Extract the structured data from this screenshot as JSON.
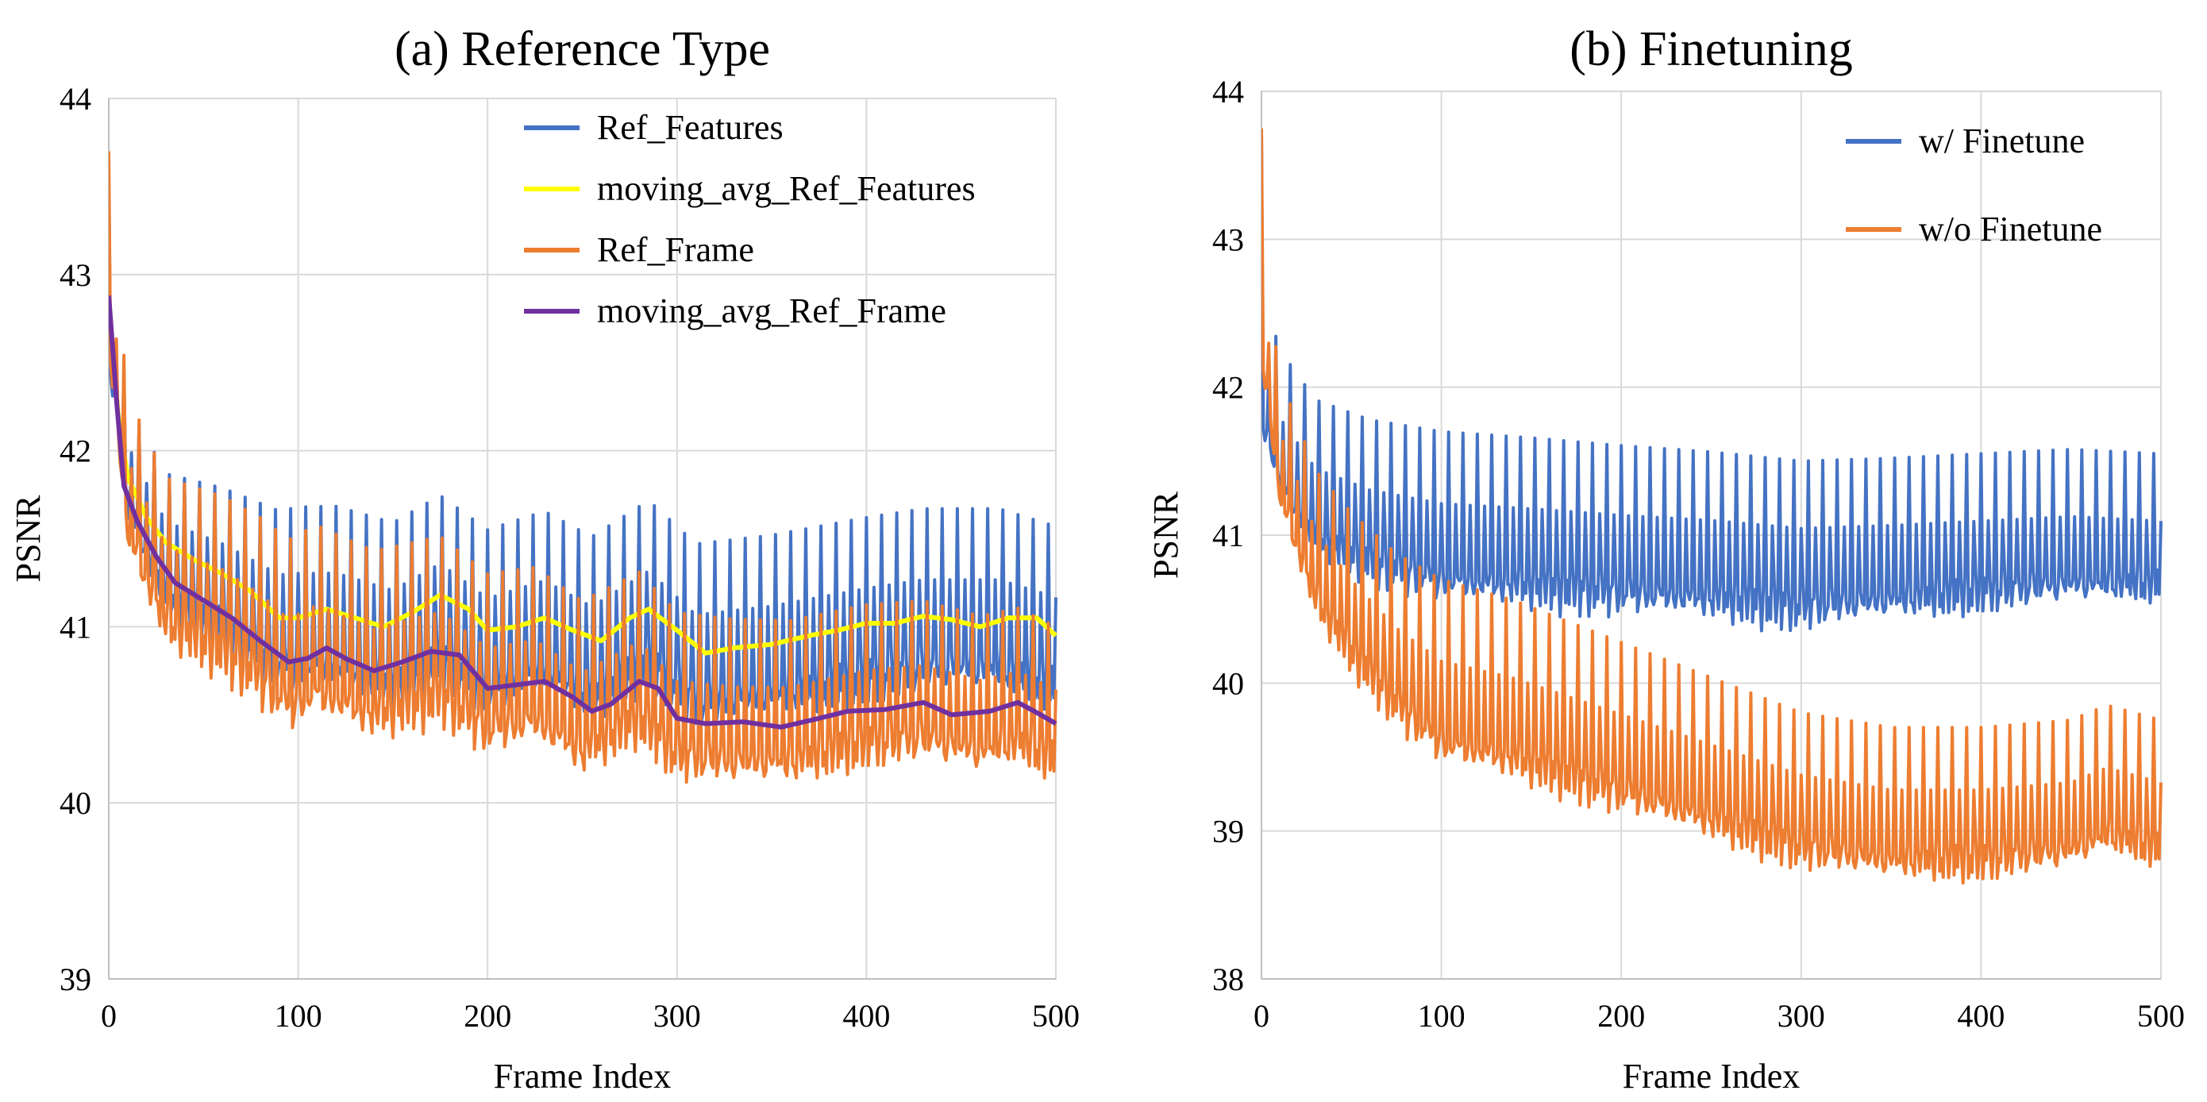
{
  "chart_data": [
    {
      "type": "line",
      "title": "(a) Reference Type",
      "xlabel": "Frame Index",
      "ylabel": "PSNR",
      "xlim": [
        0,
        500
      ],
      "ylim": [
        39,
        44
      ],
      "xticks": [
        0,
        100,
        200,
        300,
        400,
        500
      ],
      "yticks": [
        39,
        40,
        41,
        42,
        43,
        44
      ],
      "grid": true,
      "legend_position": "top-right",
      "series": [
        {
          "name": "Ref_Features",
          "color": "#4472C4",
          "style": "oscillating",
          "start": 43.6,
          "period": 8,
          "baseline": [
            [
              0,
              42.8
            ],
            [
              10,
              41.9
            ],
            [
              30,
              41.45
            ],
            [
              60,
              41.3
            ],
            [
              90,
              41.1
            ],
            [
              120,
              41.1
            ],
            [
              150,
              41.0
            ],
            [
              175,
              41.15
            ],
            [
              200,
              40.95
            ],
            [
              230,
              41.05
            ],
            [
              255,
              40.9
            ],
            [
              285,
              41.1
            ],
            [
              310,
              40.85
            ],
            [
              350,
              40.9
            ],
            [
              400,
              41.0
            ],
            [
              430,
              41.05
            ],
            [
              470,
              41.05
            ],
            [
              500,
              40.95
            ]
          ],
          "peak_amplitude": [
            [
              0,
              0.35
            ],
            [
              100,
              0.58
            ],
            [
              300,
              0.62
            ],
            [
              500,
              0.62
            ]
          ],
          "trough_amplitude": [
            [
              0,
              0.3
            ],
            [
              100,
              0.42
            ],
            [
              300,
              0.38
            ],
            [
              500,
              0.38
            ]
          ]
        },
        {
          "name": "moving_avg_Ref_Features",
          "color": "#FFFF00",
          "style": "smooth",
          "points": [
            [
              0,
              42.85
            ],
            [
              5,
              42.2
            ],
            [
              10,
              41.85
            ],
            [
              20,
              41.62
            ],
            [
              30,
              41.48
            ],
            [
              45,
              41.38
            ],
            [
              60,
              41.3
            ],
            [
              75,
              41.2
            ],
            [
              90,
              41.05
            ],
            [
              100,
              41.05
            ],
            [
              115,
              41.1
            ],
            [
              130,
              41.05
            ],
            [
              145,
              41.0
            ],
            [
              160,
              41.08
            ],
            [
              175,
              41.18
            ],
            [
              190,
              41.1
            ],
            [
              200,
              40.98
            ],
            [
              215,
              41.0
            ],
            [
              230,
              41.05
            ],
            [
              245,
              40.98
            ],
            [
              260,
              40.92
            ],
            [
              275,
              41.05
            ],
            [
              285,
              41.1
            ],
            [
              300,
              40.98
            ],
            [
              315,
              40.85
            ],
            [
              330,
              40.88
            ],
            [
              350,
              40.9
            ],
            [
              370,
              40.95
            ],
            [
              385,
              40.98
            ],
            [
              400,
              41.02
            ],
            [
              415,
              41.02
            ],
            [
              430,
              41.06
            ],
            [
              445,
              41.04
            ],
            [
              460,
              41.0
            ],
            [
              475,
              41.05
            ],
            [
              490,
              41.05
            ],
            [
              500,
              40.95
            ]
          ]
        },
        {
          "name": "Ref_Frame",
          "color": "#ED7D31",
          "style": "oscillating",
          "start": 43.7,
          "period": 8,
          "baseline": [
            [
              0,
              42.9
            ],
            [
              10,
              41.75
            ],
            [
              30,
              41.25
            ],
            [
              60,
              41.1
            ],
            [
              80,
              40.95
            ],
            [
              95,
              40.8
            ],
            [
              110,
              40.88
            ],
            [
              140,
              40.75
            ],
            [
              175,
              40.85
            ],
            [
              200,
              40.65
            ],
            [
              225,
              40.7
            ],
            [
              250,
              40.52
            ],
            [
              280,
              40.7
            ],
            [
              300,
              40.48
            ],
            [
              330,
              40.45
            ],
            [
              360,
              40.45
            ],
            [
              400,
              40.55
            ],
            [
              430,
              40.58
            ],
            [
              460,
              40.5
            ],
            [
              480,
              40.55
            ],
            [
              500,
              40.45
            ]
          ],
          "peak_amplitude": [
            [
              0,
              0.55
            ],
            [
              100,
              0.7
            ],
            [
              300,
              0.6
            ],
            [
              500,
              0.55
            ]
          ],
          "trough_amplitude": [
            [
              0,
              0.3
            ],
            [
              100,
              0.35
            ],
            [
              300,
              0.3
            ],
            [
              500,
              0.28
            ]
          ]
        },
        {
          "name": "moving_avg_Ref_Frame",
          "color": "#7030A0",
          "style": "smooth",
          "points": [
            [
              0,
              42.88
            ],
            [
              4,
              42.3
            ],
            [
              8,
              41.8
            ],
            [
              15,
              41.6
            ],
            [
              25,
              41.4
            ],
            [
              35,
              41.25
            ],
            [
              50,
              41.15
            ],
            [
              65,
              41.05
            ],
            [
              80,
              40.92
            ],
            [
              95,
              40.8
            ],
            [
              105,
              40.82
            ],
            [
              115,
              40.88
            ],
            [
              125,
              40.82
            ],
            [
              140,
              40.75
            ],
            [
              155,
              40.8
            ],
            [
              170,
              40.86
            ],
            [
              185,
              40.84
            ],
            [
              200,
              40.65
            ],
            [
              215,
              40.67
            ],
            [
              230,
              40.69
            ],
            [
              245,
              40.6
            ],
            [
              255,
              40.52
            ],
            [
              265,
              40.56
            ],
            [
              280,
              40.69
            ],
            [
              290,
              40.65
            ],
            [
              300,
              40.48
            ],
            [
              315,
              40.45
            ],
            [
              335,
              40.46
            ],
            [
              355,
              40.43
            ],
            [
              375,
              40.48
            ],
            [
              390,
              40.52
            ],
            [
              410,
              40.53
            ],
            [
              430,
              40.57
            ],
            [
              445,
              40.5
            ],
            [
              465,
              40.52
            ],
            [
              480,
              40.57
            ],
            [
              492,
              40.5
            ],
            [
              500,
              40.45
            ]
          ]
        }
      ]
    },
    {
      "type": "line",
      "title": "(b) Finetuning",
      "xlabel": "Frame Index",
      "ylabel": "PSNR",
      "xlim": [
        0,
        500
      ],
      "ylim": [
        38,
        44
      ],
      "xticks": [
        0,
        100,
        200,
        300,
        400,
        500
      ],
      "yticks": [
        38,
        39,
        40,
        41,
        42,
        43,
        44
      ],
      "grid": true,
      "legend_position": "top-right",
      "series": [
        {
          "name": "w/ Finetune",
          "color": "#4472C4",
          "style": "oscillating",
          "start": 43.7,
          "period": 8,
          "baseline": [
            [
              0,
              42.0
            ],
            [
              10,
              41.55
            ],
            [
              30,
              41.2
            ],
            [
              60,
              41.05
            ],
            [
              100,
              40.95
            ],
            [
              150,
              40.92
            ],
            [
              200,
              40.88
            ],
            [
              250,
              40.85
            ],
            [
              300,
              40.8
            ],
            [
              350,
              40.82
            ],
            [
              400,
              40.85
            ],
            [
              450,
              40.88
            ],
            [
              500,
              40.85
            ]
          ],
          "peak_amplitude": [
            [
              0,
              0.7
            ],
            [
              100,
              0.75
            ],
            [
              300,
              0.7
            ],
            [
              500,
              0.7
            ]
          ],
          "trough_amplitude": [
            [
              0,
              0.25
            ],
            [
              100,
              0.35
            ],
            [
              300,
              0.38
            ],
            [
              500,
              0.25
            ]
          ]
        },
        {
          "name": "w/o Finetune",
          "color": "#ED7D31",
          "style": "oscillating",
          "start": 43.75,
          "period": 8,
          "baseline": [
            [
              0,
              42.5
            ],
            [
              10,
              41.5
            ],
            [
              30,
              40.8
            ],
            [
              50,
              40.45
            ],
            [
              75,
              40.1
            ],
            [
              100,
              39.85
            ],
            [
              140,
              39.75
            ],
            [
              180,
              39.6
            ],
            [
              220,
              39.45
            ],
            [
              260,
              39.3
            ],
            [
              300,
              39.15
            ],
            [
              350,
              39.05
            ],
            [
              400,
              39.05
            ],
            [
              450,
              39.1
            ],
            [
              470,
              39.2
            ],
            [
              500,
              39.1
            ]
          ],
          "peak_amplitude": [
            [
              0,
              0.55
            ],
            [
              100,
              0.85
            ],
            [
              300,
              0.65
            ],
            [
              500,
              0.65
            ]
          ],
          "trough_amplitude": [
            [
              0,
              0.3
            ],
            [
              100,
              0.35
            ],
            [
              300,
              0.35
            ],
            [
              500,
              0.3
            ]
          ]
        }
      ]
    }
  ]
}
